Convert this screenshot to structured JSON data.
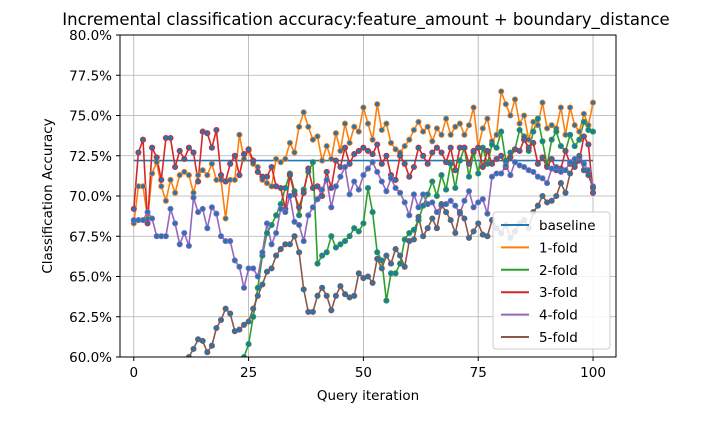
{
  "chart_data": {
    "type": "line",
    "title": "Incremental classification accuracy:feature_amount + boundary_distance",
    "xlabel": "Query iteration",
    "ylabel": "Classification Accuracy",
    "xlim": [
      -3,
      105
    ],
    "ylim": [
      0.6,
      0.8
    ],
    "xticks": [
      0,
      25,
      50,
      75,
      100
    ],
    "xtick_labels": [
      "0",
      "25",
      "50",
      "75",
      "100"
    ],
    "yticks": [
      0.6,
      0.625,
      0.65,
      0.675,
      0.7,
      0.725,
      0.75,
      0.775,
      0.8
    ],
    "ytick_labels": [
      "60.0%",
      "62.5%",
      "65.0%",
      "67.5%",
      "70.0%",
      "72.5%",
      "75.0%",
      "77.5%",
      "80.0%"
    ],
    "grid": true,
    "legend_position": "lower-right",
    "series": [
      {
        "name": "baseline",
        "color": "#1f77b4",
        "markers": false,
        "x": [
          0,
          100
        ],
        "y": [
          0.722,
          0.722
        ]
      },
      {
        "name": "1-fold",
        "color": "#ff7f0e",
        "markers": true,
        "x": [
          0,
          1,
          2,
          3,
          4,
          5,
          6,
          7,
          8,
          9,
          10,
          11,
          12,
          13,
          14,
          15,
          16,
          17,
          18,
          19,
          20,
          21,
          22,
          23,
          24,
          25,
          26,
          27,
          28,
          29,
          30,
          31,
          32,
          33,
          34,
          35,
          36,
          37,
          38,
          39,
          40,
          41,
          42,
          43,
          44,
          45,
          46,
          47,
          48,
          49,
          50,
          51,
          52,
          53,
          54,
          55,
          56,
          57,
          58,
          59,
          60,
          61,
          62,
          63,
          64,
          65,
          66,
          67,
          68,
          69,
          70,
          71,
          72,
          73,
          74,
          75,
          76,
          77,
          78,
          79,
          80,
          81,
          82,
          83,
          84,
          85,
          86,
          87,
          88,
          89,
          90,
          91,
          92,
          93,
          94,
          95,
          96,
          97,
          98,
          99,
          100
        ],
        "y": [
          0.683,
          0.706,
          0.706,
          0.686,
          0.714,
          0.721,
          0.706,
          0.697,
          0.71,
          0.702,
          0.713,
          0.715,
          0.713,
          0.702,
          0.713,
          0.716,
          0.713,
          0.72,
          0.71,
          0.71,
          0.686,
          0.71,
          0.71,
          0.738,
          0.723,
          0.728,
          0.72,
          0.718,
          0.71,
          0.708,
          0.706,
          0.723,
          0.721,
          0.723,
          0.733,
          0.727,
          0.743,
          0.752,
          0.743,
          0.735,
          0.737,
          0.722,
          0.731,
          0.723,
          0.739,
          0.728,
          0.745,
          0.733,
          0.743,
          0.74,
          0.755,
          0.745,
          0.735,
          0.757,
          0.741,
          0.745,
          0.733,
          0.729,
          0.727,
          0.731,
          0.735,
          0.741,
          0.746,
          0.74,
          0.743,
          0.734,
          0.742,
          0.738,
          0.748,
          0.738,
          0.743,
          0.745,
          0.738,
          0.744,
          0.755,
          0.73,
          0.742,
          0.748,
          0.734,
          0.738,
          0.765,
          0.757,
          0.75,
          0.76,
          0.745,
          0.75,
          0.735,
          0.746,
          0.744,
          0.758,
          0.742,
          0.744,
          0.742,
          0.755,
          0.738,
          0.755,
          0.744,
          0.74,
          0.751,
          0.744,
          0.758
        ]
      },
      {
        "name": "2-fold",
        "color": "#2ca02c",
        "markers": true,
        "x": [
          24,
          25,
          26,
          27,
          28,
          29,
          30,
          31,
          32,
          33,
          34,
          35,
          36,
          37,
          38,
          39,
          40,
          41,
          42,
          43,
          44,
          45,
          46,
          47,
          48,
          49,
          50,
          51,
          52,
          53,
          54,
          55,
          56,
          57,
          58,
          59,
          60,
          61,
          62,
          63,
          64,
          65,
          66,
          67,
          68,
          69,
          70,
          71,
          72,
          73,
          74,
          75,
          76,
          77,
          78,
          79,
          80,
          81,
          82,
          83,
          84,
          85,
          86,
          87,
          88,
          89,
          90,
          91,
          92,
          93,
          94,
          95,
          96,
          97,
          98,
          99,
          100
        ],
        "y": [
          0.6,
          0.608,
          0.625,
          0.643,
          0.663,
          0.677,
          0.682,
          0.688,
          0.695,
          0.705,
          0.714,
          0.703,
          0.688,
          0.704,
          0.715,
          0.721,
          0.658,
          0.663,
          0.665,
          0.675,
          0.668,
          0.67,
          0.672,
          0.675,
          0.68,
          0.678,
          0.683,
          0.705,
          0.69,
          0.665,
          0.66,
          0.635,
          0.652,
          0.652,
          0.658,
          0.673,
          0.677,
          0.679,
          0.685,
          0.694,
          0.701,
          0.709,
          0.7,
          0.713,
          0.704,
          0.72,
          0.705,
          0.722,
          0.73,
          0.712,
          0.727,
          0.714,
          0.73,
          0.72,
          0.732,
          0.73,
          0.74,
          0.722,
          0.727,
          0.729,
          0.741,
          0.737,
          0.728,
          0.74,
          0.748,
          0.734,
          0.719,
          0.735,
          0.74,
          0.731,
          0.728,
          0.738,
          0.731,
          0.735,
          0.746,
          0.741,
          0.74
        ]
      },
      {
        "name": "3-fold",
        "color": "#d62728",
        "markers": true,
        "x": [
          0,
          1,
          2,
          3,
          4,
          5,
          6,
          7,
          8,
          9,
          10,
          11,
          12,
          13,
          14,
          15,
          16,
          17,
          18,
          19,
          20,
          21,
          22,
          23,
          24,
          25,
          26,
          27,
          28,
          29,
          30,
          31,
          32,
          33,
          34,
          35,
          36,
          37,
          38,
          39,
          40,
          41,
          42,
          43,
          44,
          45,
          46,
          47,
          48,
          49,
          50,
          51,
          52,
          53,
          54,
          55,
          56,
          57,
          58,
          59,
          60,
          61,
          62,
          63,
          64,
          65,
          66,
          67,
          68,
          69,
          70,
          71,
          72,
          73,
          74,
          75,
          76,
          77,
          78,
          79,
          80,
          81,
          82,
          83,
          84,
          85,
          86,
          87,
          88,
          89,
          90,
          91,
          92,
          93,
          94,
          95,
          96,
          97,
          98,
          99,
          100
        ],
        "y": [
          0.692,
          0.727,
          0.735,
          0.683,
          0.73,
          0.724,
          0.71,
          0.736,
          0.736,
          0.718,
          0.728,
          0.723,
          0.73,
          0.727,
          0.709,
          0.74,
          0.739,
          0.73,
          0.741,
          0.713,
          0.709,
          0.72,
          0.725,
          0.713,
          0.726,
          0.729,
          0.722,
          0.715,
          0.712,
          0.712,
          0.718,
          0.706,
          0.705,
          0.692,
          0.713,
          0.701,
          0.693,
          0.702,
          0.717,
          0.705,
          0.706,
          0.7,
          0.715,
          0.705,
          0.722,
          0.718,
          0.73,
          0.72,
          0.726,
          0.728,
          0.73,
          0.728,
          0.726,
          0.732,
          0.72,
          0.725,
          0.713,
          0.71,
          0.725,
          0.72,
          0.712,
          0.718,
          0.73,
          0.725,
          0.72,
          0.727,
          0.73,
          0.727,
          0.721,
          0.73,
          0.716,
          0.73,
          0.73,
          0.72,
          0.728,
          0.73,
          0.718,
          0.728,
          0.72,
          0.723,
          0.725,
          0.718,
          0.724,
          0.729,
          0.728,
          0.735,
          0.73,
          0.733,
          0.72,
          0.724,
          0.718,
          0.723,
          0.716,
          0.717,
          0.728,
          0.72,
          0.718,
          0.722,
          0.737,
          0.732,
          0.702
        ]
      },
      {
        "name": "4-fold",
        "color": "#9467bd",
        "markers": true,
        "x": [
          0,
          1,
          2,
          3,
          4,
          5,
          6,
          7,
          8,
          9,
          10,
          11,
          12,
          13,
          14,
          15,
          16,
          17,
          18,
          19,
          20,
          21,
          22,
          23,
          24,
          25,
          26,
          27,
          28,
          29,
          30,
          31,
          32,
          33,
          34,
          35,
          36,
          37,
          38,
          39,
          40,
          41,
          42,
          43,
          44,
          45,
          46,
          47,
          48,
          49,
          50,
          51,
          52,
          53,
          54,
          55,
          56,
          57,
          58,
          59,
          60,
          61,
          62,
          63,
          64,
          65,
          66,
          67,
          68,
          69,
          70,
          71,
          72,
          73,
          74,
          75,
          76,
          77,
          78,
          79,
          80,
          81,
          82,
          83,
          84,
          85,
          86,
          87,
          88,
          89,
          90,
          91,
          92,
          93,
          94,
          95,
          96,
          97,
          98,
          99,
          100
        ],
        "y": [
          0.685,
          0.685,
          0.685,
          0.69,
          0.686,
          0.675,
          0.675,
          0.675,
          0.692,
          0.683,
          0.67,
          0.677,
          0.669,
          0.699,
          0.69,
          0.692,
          0.68,
          0.693,
          0.689,
          0.675,
          0.672,
          0.672,
          0.66,
          0.656,
          0.643,
          0.655,
          0.655,
          0.65,
          0.665,
          0.683,
          0.67,
          0.677,
          0.692,
          0.69,
          0.7,
          0.684,
          0.682,
          0.672,
          0.688,
          0.693,
          0.698,
          0.704,
          0.71,
          0.693,
          0.706,
          0.712,
          0.718,
          0.701,
          0.709,
          0.704,
          0.713,
          0.717,
          0.721,
          0.715,
          0.709,
          0.703,
          0.711,
          0.705,
          0.702,
          0.696,
          0.688,
          0.701,
          0.693,
          0.701,
          0.695,
          0.696,
          0.69,
          0.694,
          0.695,
          0.697,
          0.694,
          0.689,
          0.697,
          0.703,
          0.693,
          0.696,
          0.698,
          0.689,
          0.712,
          0.714,
          0.714,
          0.719,
          0.713,
          0.721,
          0.719,
          0.718,
          0.716,
          0.715,
          0.712,
          0.711,
          0.708,
          0.717,
          0.718,
          0.715,
          0.716,
          0.721,
          0.723,
          0.724,
          0.72,
          0.716,
          0.706
        ]
      },
      {
        "name": "5-fold",
        "color": "#8c564b",
        "markers": true,
        "x": [
          12,
          13,
          14,
          15,
          16,
          17,
          18,
          19,
          20,
          21,
          22,
          23,
          24,
          25,
          26,
          27,
          28,
          29,
          30,
          31,
          32,
          33,
          34,
          35,
          36,
          37,
          38,
          39,
          40,
          41,
          42,
          43,
          44,
          45,
          46,
          47,
          48,
          49,
          50,
          51,
          52,
          53,
          54,
          55,
          56,
          57,
          58,
          59,
          60,
          61,
          62,
          63,
          64,
          65,
          66,
          67,
          68,
          69,
          70,
          71,
          72,
          73,
          74,
          75,
          76,
          77,
          78,
          79,
          80,
          81,
          82,
          83,
          84,
          85,
          86,
          87,
          88,
          89,
          90,
          91,
          92,
          93,
          94,
          95,
          96,
          97,
          98,
          99,
          100
        ],
        "y": [
          0.6,
          0.605,
          0.611,
          0.61,
          0.603,
          0.607,
          0.618,
          0.623,
          0.63,
          0.627,
          0.616,
          0.617,
          0.62,
          0.622,
          0.63,
          0.638,
          0.645,
          0.653,
          0.655,
          0.663,
          0.667,
          0.67,
          0.67,
          0.675,
          0.665,
          0.642,
          0.628,
          0.628,
          0.638,
          0.643,
          0.638,
          0.629,
          0.638,
          0.644,
          0.639,
          0.637,
          0.638,
          0.652,
          0.649,
          0.65,
          0.646,
          0.661,
          0.655,
          0.663,
          0.658,
          0.667,
          0.663,
          0.656,
          0.672,
          0.673,
          0.687,
          0.675,
          0.68,
          0.686,
          0.68,
          0.695,
          0.69,
          0.685,
          0.677,
          0.69,
          0.686,
          0.674,
          0.678,
          0.683,
          0.676,
          0.675,
          0.685,
          0.68,
          0.677,
          0.682,
          0.674,
          0.678,
          0.683,
          0.685,
          0.68,
          0.69,
          0.694,
          0.7,
          0.696,
          0.697,
          0.7,
          0.708,
          0.702,
          0.714,
          0.72,
          0.725,
          0.716,
          0.713,
          0.705
        ]
      }
    ]
  }
}
